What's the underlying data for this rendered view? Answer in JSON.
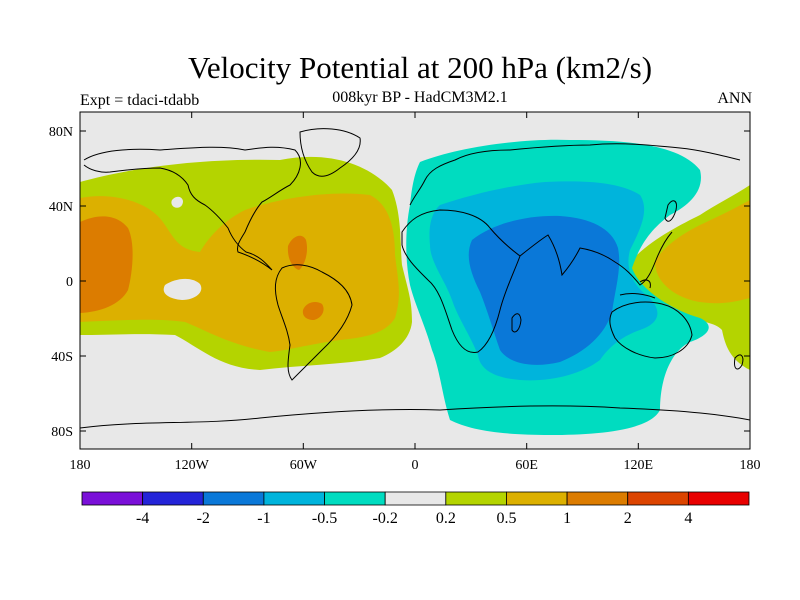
{
  "title": "Velocity Potential at 200 hPa (km2/s)",
  "subtitle": "008kyr BP - HadCM3M2.1",
  "left_string": "Expt = tdaci-tdabb",
  "right_string": "ANN",
  "lat_ticks": [
    "80N",
    "40N",
    "0",
    "40S",
    "80S"
  ],
  "lon_ticks": [
    "180",
    "120W",
    "60W",
    "0",
    "60E",
    "120E",
    "180"
  ],
  "colorbar": {
    "colors": [
      "#7a10d8",
      "#2424d8",
      "#0a78d8",
      "#00b4dc",
      "#00dcc0",
      "#e8e8e8",
      "#b4d400",
      "#dcb000",
      "#dc7c00",
      "#dc4400",
      "#e80000"
    ],
    "labels": [
      "-4",
      "-2",
      "-1",
      "-0.5",
      "-0.2",
      "0.2",
      "0.5",
      "1",
      "2",
      "4"
    ]
  },
  "colors": {
    "neutral": "#e8e8e8",
    "pos_low": "#b4d400",
    "pos_mid": "#dcb000",
    "pos_high": "#dc7c00",
    "neg_low": "#00dcc0",
    "neg_mid": "#00b4dc",
    "neg_high": "#0a78d8"
  }
}
